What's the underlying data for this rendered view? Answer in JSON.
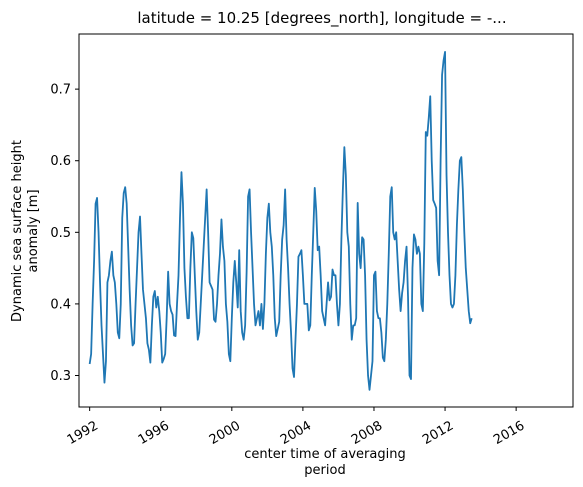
{
  "chart_data": {
    "type": "line",
    "title": "latitude = 10.25 [degrees_north], longitude = -...",
    "xlabel_lines": [
      "center time of averaging",
      "period"
    ],
    "ylabel_lines": [
      "Dynamic sea surface height",
      "anomaly [m]"
    ],
    "xlim": [
      1991.4,
      2019.2
    ],
    "ylim": [
      0.256,
      0.777
    ],
    "x_ticks": [
      1992,
      1996,
      2000,
      2004,
      2008,
      2012,
      2016
    ],
    "y_ticks": [
      0.3,
      0.4,
      0.5,
      0.6,
      0.7
    ],
    "grid": false,
    "line_color": "#1f77b4",
    "series": [
      {
        "x_start": 1992.0,
        "x_step": 0.08333,
        "values": [
          0.316,
          0.33,
          0.4,
          0.46,
          0.54,
          0.548,
          0.5,
          0.43,
          0.37,
          0.33,
          0.29,
          0.32,
          0.43,
          0.44,
          0.46,
          0.473,
          0.44,
          0.43,
          0.4,
          0.36,
          0.352,
          0.4,
          0.52,
          0.555,
          0.563,
          0.54,
          0.48,
          0.42,
          0.37,
          0.342,
          0.345,
          0.4,
          0.45,
          0.5,
          0.522,
          0.47,
          0.42,
          0.4,
          0.38,
          0.345,
          0.336,
          0.318,
          0.37,
          0.41,
          0.418,
          0.395,
          0.41,
          0.39,
          0.36,
          0.318,
          0.323,
          0.33,
          0.38,
          0.445,
          0.4,
          0.39,
          0.385,
          0.356,
          0.355,
          0.4,
          0.44,
          0.52,
          0.584,
          0.54,
          0.45,
          0.41,
          0.38,
          0.38,
          0.45,
          0.5,
          0.492,
          0.44,
          0.39,
          0.35,
          0.36,
          0.4,
          0.44,
          0.48,
          0.52,
          0.56,
          0.5,
          0.43,
          0.425,
          0.42,
          0.378,
          0.375,
          0.4,
          0.44,
          0.47,
          0.518,
          0.48,
          0.46,
          0.4,
          0.375,
          0.33,
          0.32,
          0.38,
          0.43,
          0.46,
          0.43,
          0.395,
          0.475,
          0.39,
          0.36,
          0.35,
          0.37,
          0.445,
          0.55,
          0.56,
          0.5,
          0.45,
          0.4,
          0.37,
          0.38,
          0.39,
          0.37,
          0.4,
          0.365,
          0.4,
          0.47,
          0.52,
          0.54,
          0.5,
          0.48,
          0.44,
          0.38,
          0.355,
          0.365,
          0.375,
          0.44,
          0.49,
          0.51,
          0.56,
          0.49,
          0.45,
          0.4,
          0.36,
          0.31,
          0.298,
          0.35,
          0.4,
          0.466,
          0.47,
          0.475,
          0.44,
          0.4,
          0.4,
          0.4,
          0.363,
          0.37,
          0.44,
          0.5,
          0.562,
          0.53,
          0.475,
          0.48,
          0.44,
          0.39,
          0.38,
          0.37,
          0.4,
          0.43,
          0.405,
          0.41,
          0.448,
          0.44,
          0.44,
          0.4,
          0.37,
          0.4,
          0.49,
          0.56,
          0.619,
          0.58,
          0.5,
          0.48,
          0.4,
          0.35,
          0.37,
          0.37,
          0.38,
          0.541,
          0.47,
          0.45,
          0.493,
          0.49,
          0.44,
          0.35,
          0.3,
          0.28,
          0.3,
          0.32,
          0.44,
          0.445,
          0.39,
          0.38,
          0.38,
          0.36,
          0.325,
          0.32,
          0.35,
          0.4,
          0.47,
          0.55,
          0.563,
          0.5,
          0.49,
          0.5,
          0.46,
          0.42,
          0.39,
          0.415,
          0.43,
          0.46,
          0.48,
          0.41,
          0.3,
          0.295,
          0.45,
          0.497,
          0.49,
          0.47,
          0.48,
          0.47,
          0.4,
          0.39,
          0.485,
          0.64,
          0.635,
          0.66,
          0.69,
          0.6,
          0.545,
          0.54,
          0.534,
          0.46,
          0.44,
          0.6,
          0.72,
          0.74,
          0.752,
          0.58,
          0.5,
          0.44,
          0.4,
          0.395,
          0.4,
          0.44,
          0.51,
          0.56,
          0.6,
          0.605,
          0.56,
          0.5,
          0.45,
          0.42,
          0.39,
          0.373,
          0.38
        ]
      }
    ]
  }
}
